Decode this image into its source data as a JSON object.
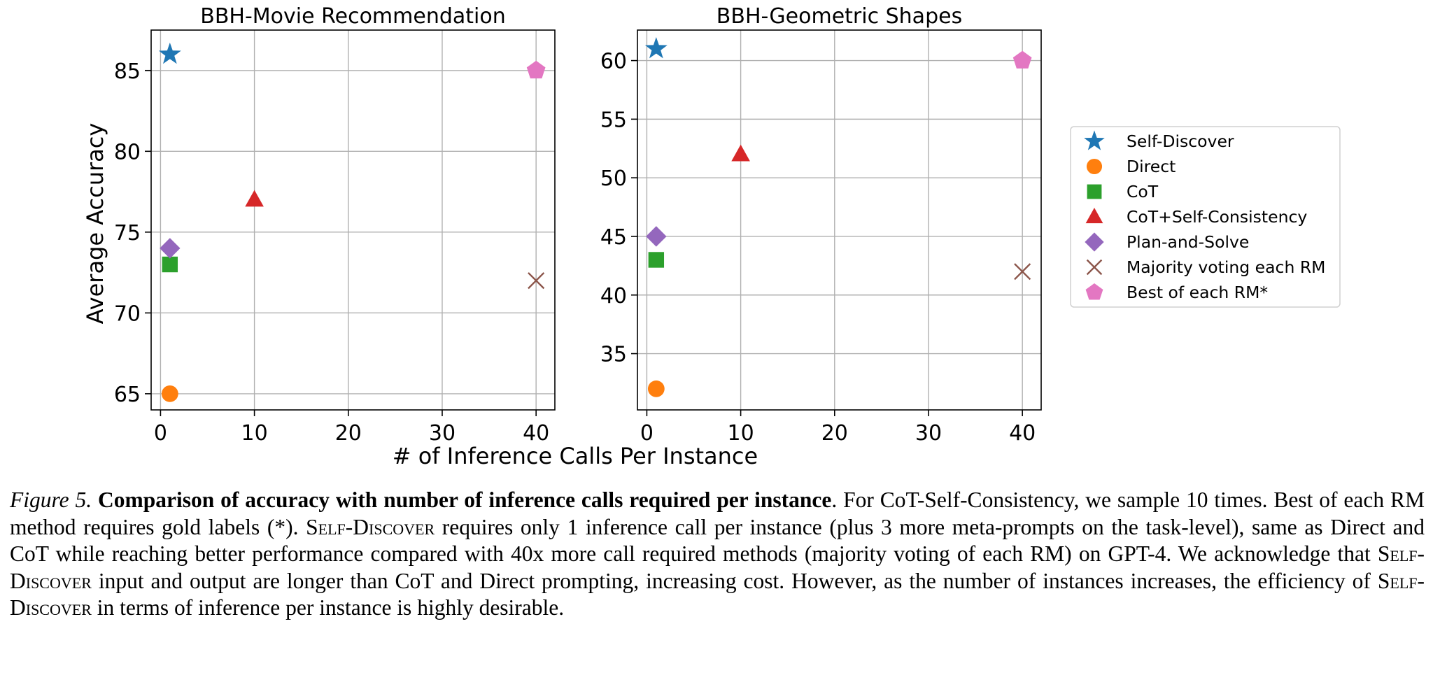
{
  "chart_data": [
    {
      "type": "scatter",
      "title": "BBH-Movie Recommendation",
      "xlabel": "",
      "ylabel": "Average Accuracy",
      "xlim": [
        -1,
        42
      ],
      "ylim": [
        64,
        87.5
      ],
      "xticks": [
        0,
        10,
        20,
        30,
        40
      ],
      "yticks": [
        65,
        70,
        75,
        80,
        85
      ],
      "grid": true,
      "series": [
        {
          "name": "Self-Discover",
          "x": [
            1
          ],
          "y": [
            86
          ]
        },
        {
          "name": "Direct",
          "x": [
            1
          ],
          "y": [
            65
          ]
        },
        {
          "name": "CoT",
          "x": [
            1
          ],
          "y": [
            73
          ]
        },
        {
          "name": "CoT+Self-Consistency",
          "x": [
            10
          ],
          "y": [
            77
          ]
        },
        {
          "name": "Plan-and-Solve",
          "x": [
            1
          ],
          "y": [
            74
          ]
        },
        {
          "name": "Majority voting each RM",
          "x": [
            40
          ],
          "y": [
            72
          ]
        },
        {
          "name": "Best of each RM*",
          "x": [
            40
          ],
          "y": [
            85
          ]
        }
      ]
    },
    {
      "type": "scatter",
      "title": "BBH-Geometric Shapes",
      "xlabel": "",
      "ylabel": "",
      "xlim": [
        -1,
        42
      ],
      "ylim": [
        30.2,
        62.6
      ],
      "xticks": [
        0,
        10,
        20,
        30,
        40
      ],
      "yticks": [
        35,
        40,
        45,
        50,
        55,
        60
      ],
      "grid": true,
      "series": [
        {
          "name": "Self-Discover",
          "x": [
            1
          ],
          "y": [
            61
          ]
        },
        {
          "name": "Direct",
          "x": [
            1
          ],
          "y": [
            32
          ]
        },
        {
          "name": "CoT",
          "x": [
            1
          ],
          "y": [
            43
          ]
        },
        {
          "name": "CoT+Self-Consistency",
          "x": [
            10
          ],
          "y": [
            52
          ]
        },
        {
          "name": "Plan-and-Solve",
          "x": [
            1
          ],
          "y": [
            45
          ]
        },
        {
          "name": "Majority voting each RM",
          "x": [
            40
          ],
          "y": [
            42
          ]
        },
        {
          "name": "Best of each RM*",
          "x": [
            40
          ],
          "y": [
            60
          ]
        }
      ]
    }
  ],
  "shared_xlabel": "# of Inference Calls Per Instance",
  "legend": {
    "placement": "right",
    "entries": [
      {
        "label": "Self-Discover",
        "marker": "star",
        "color": "#1f77b4"
      },
      {
        "label": "Direct",
        "marker": "circle",
        "color": "#ff7f0e"
      },
      {
        "label": "CoT",
        "marker": "square",
        "color": "#2ca02c"
      },
      {
        "label": "CoT+Self-Consistency",
        "marker": "triangle",
        "color": "#d62728"
      },
      {
        "label": "Plan-and-Solve",
        "marker": "diamond",
        "color": "#9467bd"
      },
      {
        "label": "Majority voting each RM",
        "marker": "x",
        "color": "#8c564b"
      },
      {
        "label": "Best of each RM*",
        "marker": "pentagon",
        "color": "#e377c2"
      }
    ]
  },
  "caption": {
    "fig_label": "Figure 5.",
    "bold_title": "Comparison of accuracy with number of inference calls required per instance",
    "p1": ". For CoT-Self-Consistency, we sample 10 times. Best of each RM method requires gold labels (*). ",
    "sc1": "Self-Discover",
    "p2": " requires only 1 inference call per instance (plus 3 more meta-prompts on the task-level), same as Direct and CoT while reaching better performance compared with 40x more call required methods (majority voting of each RM) on GPT-4. We acknowledge that ",
    "sc2": "Self-Discover",
    "p3": " input and output are longer than CoT and Direct prompting, increasing cost. However, as the number of instances increases, the efficiency of ",
    "sc3": "Self-Discover",
    "p4": " in terms of inference per instance is highly desirable."
  }
}
